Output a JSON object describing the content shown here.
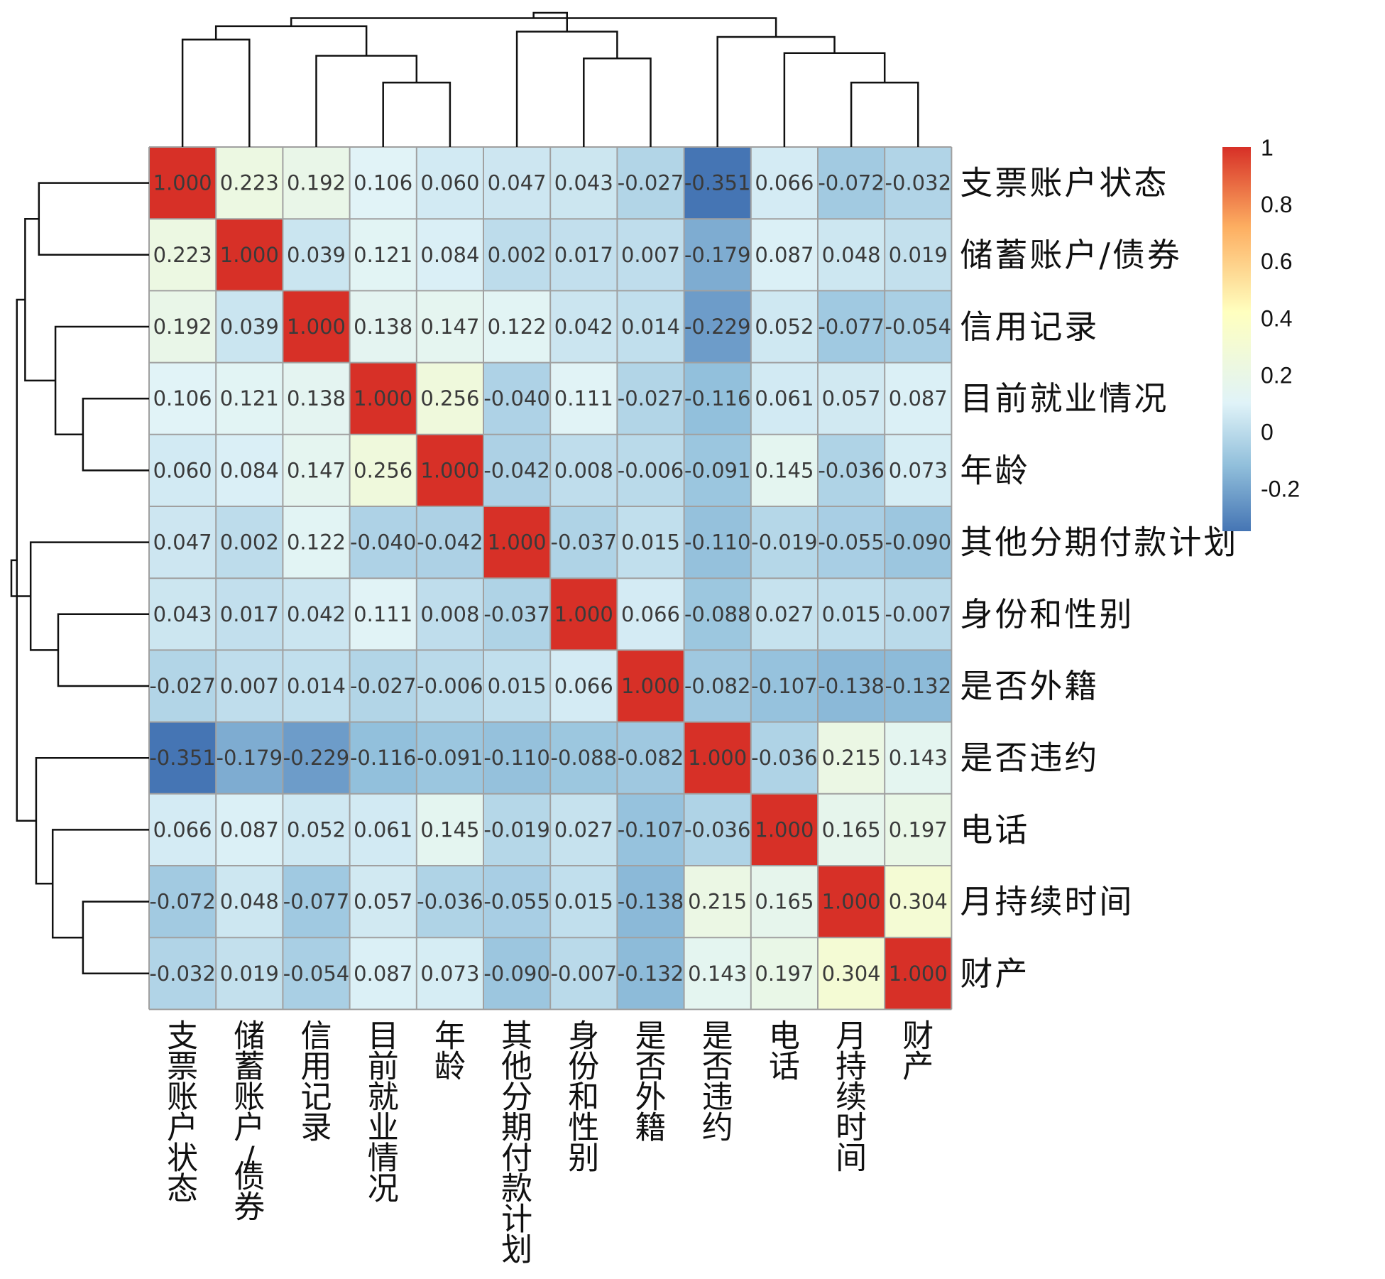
{
  "chart_data": {
    "type": "heatmap",
    "title": "",
    "labels": [
      "支票账户状态",
      "储蓄账户/债券",
      "信用记录",
      "目前就业情况",
      "年龄",
      "其他分期付款计划",
      "身份和性别",
      "是否外籍",
      "是否违约",
      "电话",
      "月持续时间",
      "财产"
    ],
    "matrix": [
      [
        "1.000",
        "0.223",
        "0.192",
        "0.106",
        "0.060",
        "0.047",
        "0.043",
        "-0.027",
        "-0.351",
        "0.066",
        "-0.072",
        "-0.032"
      ],
      [
        "0.223",
        "1.000",
        "0.039",
        "0.121",
        "0.084",
        "0.002",
        "0.017",
        "0.007",
        "-0.179",
        "0.087",
        "0.048",
        "0.019"
      ],
      [
        "0.192",
        "0.039",
        "1.000",
        "0.138",
        "0.147",
        "0.122",
        "0.042",
        "0.014",
        "-0.229",
        "0.052",
        "-0.077",
        "-0.054"
      ],
      [
        "0.106",
        "0.121",
        "0.138",
        "1.000",
        "0.256",
        "-0.040",
        "0.111",
        "-0.027",
        "-0.116",
        "0.061",
        "0.057",
        "0.087"
      ],
      [
        "0.060",
        "0.084",
        "0.147",
        "0.256",
        "1.000",
        "-0.042",
        "0.008",
        "-0.006",
        "-0.091",
        "0.145",
        "-0.036",
        "0.073"
      ],
      [
        "0.047",
        "0.002",
        "0.122",
        "-0.040",
        "-0.042",
        "1.000",
        "-0.037",
        "0.015",
        "-0.110",
        "-0.019",
        "-0.055",
        "-0.090"
      ],
      [
        "0.043",
        "0.017",
        "0.042",
        "0.111",
        "0.008",
        "-0.037",
        "1.000",
        "0.066",
        "-0.088",
        "0.027",
        "0.015",
        "-0.007"
      ],
      [
        "-0.027",
        "0.007",
        "0.014",
        "-0.027",
        "-0.006",
        "0.015",
        "0.066",
        "1.000",
        "-0.082",
        "-0.107",
        "-0.138",
        "-0.132"
      ],
      [
        "-0.351",
        "-0.179",
        "-0.229",
        "-0.116",
        "-0.091",
        "-0.110",
        "-0.088",
        "-0.082",
        "1.000",
        "-0.036",
        "0.215",
        "0.143"
      ],
      [
        "0.066",
        "0.087",
        "0.052",
        "0.061",
        "0.145",
        "-0.019",
        "0.027",
        "-0.107",
        "-0.036",
        "1.000",
        "0.165",
        "0.197"
      ],
      [
        "-0.072",
        "0.048",
        "-0.077",
        "0.057",
        "-0.036",
        "-0.055",
        "0.015",
        "-0.138",
        "0.215",
        "0.165",
        "1.000",
        "0.304"
      ],
      [
        "-0.032",
        "0.019",
        "-0.054",
        "0.087",
        "0.073",
        "-0.090",
        "-0.007",
        "-0.132",
        "0.143",
        "0.197",
        "0.304",
        "1.000"
      ]
    ],
    "color_range": [
      -0.351,
      1.0
    ],
    "legend": {
      "ticks": [
        "1",
        "0.8",
        "0.6",
        "0.4",
        "0.2",
        "0",
        "-0.2"
      ],
      "tick_values": [
        1,
        0.8,
        0.6,
        0.4,
        0.2,
        0,
        -0.2
      ],
      "placement": "right"
    },
    "colors": {
      "low": "#4575b4",
      "mid_low": "#91bfdb",
      "mid": "#e0f3f8",
      "mid_high": "#ffffbf",
      "high_mid": "#fdae61",
      "high": "#d73027",
      "grid": "#a0a0a0",
      "dendrogram": "#111111"
    },
    "dendrogram": {
      "merges": [
        [
          0,
          1
        ],
        [
          3,
          4
        ],
        [
          10,
          11
        ],
        [
          2,
          13
        ],
        [
          6,
          7
        ],
        [
          9,
          14
        ],
        [
          12,
          15
        ],
        [
          5,
          16
        ],
        [
          8,
          17
        ],
        [
          18,
          20
        ],
        [
          19,
          21
        ]
      ],
      "heights": [
        0.8,
        0.48,
        0.48,
        0.68,
        0.66,
        0.7,
        0.9,
        0.86,
        0.82,
        0.96,
        1.0
      ]
    }
  }
}
